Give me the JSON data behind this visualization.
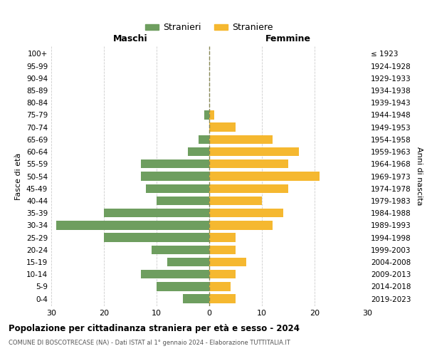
{
  "age_groups": [
    "0-4",
    "5-9",
    "10-14",
    "15-19",
    "20-24",
    "25-29",
    "30-34",
    "35-39",
    "40-44",
    "45-49",
    "50-54",
    "55-59",
    "60-64",
    "65-69",
    "70-74",
    "75-79",
    "80-84",
    "85-89",
    "90-94",
    "95-99",
    "100+"
  ],
  "birth_years": [
    "2019-2023",
    "2014-2018",
    "2009-2013",
    "2004-2008",
    "1999-2003",
    "1994-1998",
    "1989-1993",
    "1984-1988",
    "1979-1983",
    "1974-1978",
    "1969-1973",
    "1964-1968",
    "1959-1963",
    "1954-1958",
    "1949-1953",
    "1944-1948",
    "1939-1943",
    "1934-1938",
    "1929-1933",
    "1924-1928",
    "≤ 1923"
  ],
  "males": [
    5,
    10,
    13,
    8,
    11,
    20,
    29,
    20,
    10,
    12,
    13,
    13,
    4,
    2,
    0,
    1,
    0,
    0,
    0,
    0,
    0
  ],
  "females": [
    5,
    4,
    5,
    7,
    5,
    5,
    12,
    14,
    10,
    15,
    21,
    15,
    17,
    12,
    5,
    1,
    0,
    0,
    0,
    0,
    0
  ],
  "male_color": "#6e9e5f",
  "female_color": "#f5b830",
  "bar_height": 0.72,
  "xlim": 30,
  "title": "Popolazione per cittadinanza straniera per età e sesso - 2024",
  "subtitle": "COMUNE DI BOSCOTRECASE (NA) - Dati ISTAT al 1° gennaio 2024 - Elaborazione TUTTITALIA.IT",
  "ylabel_left": "Fasce di età",
  "ylabel_right": "Anni di nascita",
  "legend_male": "Stranieri",
  "legend_female": "Straniere",
  "maschi_label": "Maschi",
  "femmine_label": "Femmine",
  "grid_color": "#cccccc",
  "background_color": "#ffffff",
  "vline_color": "#888855"
}
